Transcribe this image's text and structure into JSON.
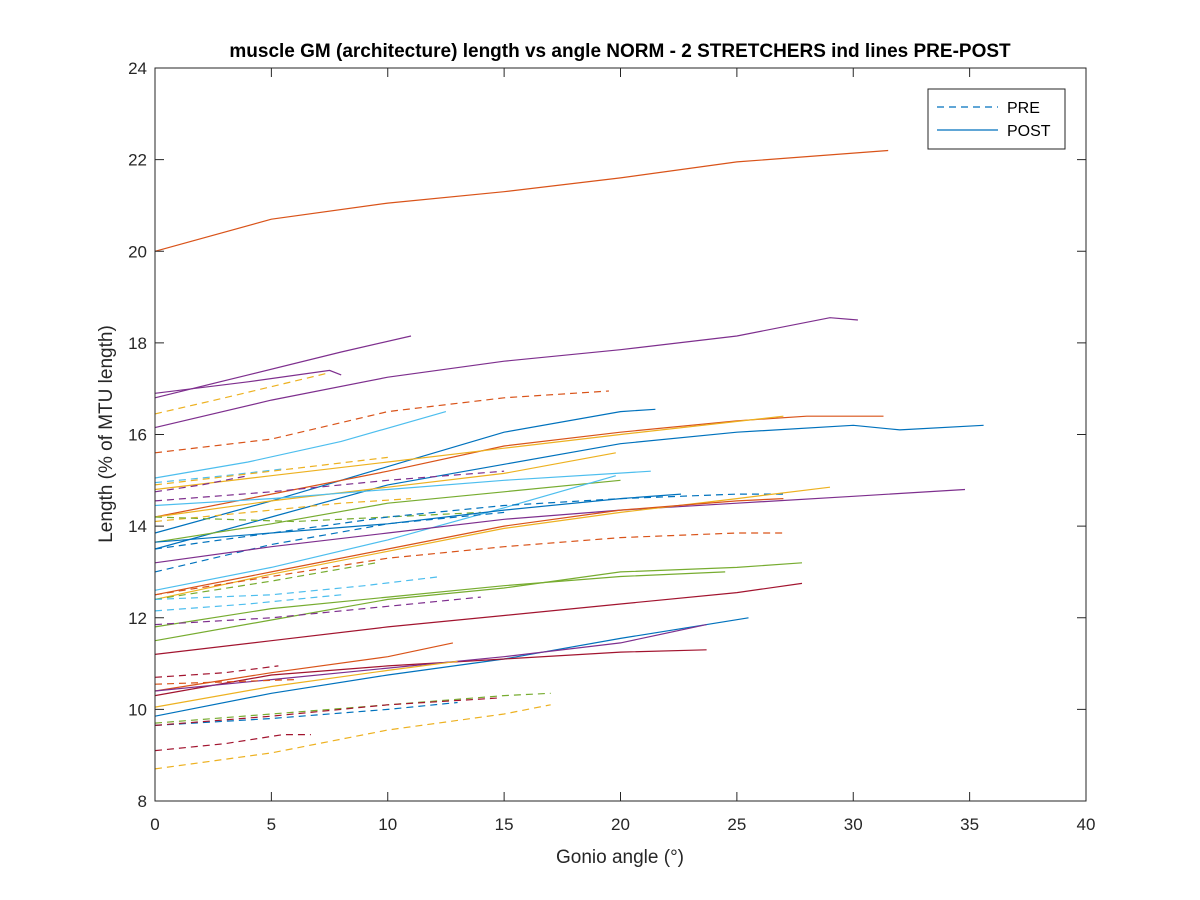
{
  "chart_data": {
    "type": "line",
    "title": "muscle GM (architecture) length vs angle NORM - 2 STRETCHERS ind lines PRE-POST",
    "xlabel": "Gonio angle (°)",
    "ylabel": "Length (% of MTU length)",
    "xlim": [
      0,
      40
    ],
    "ylim": [
      8,
      24
    ],
    "xticks": [
      "0",
      "5",
      "10",
      "15",
      "20",
      "25",
      "30",
      "35",
      "40"
    ],
    "yticks": [
      "8",
      "10",
      "12",
      "14",
      "16",
      "18",
      "20",
      "22",
      "24"
    ],
    "grid": false,
    "legend": {
      "placement": "top-right",
      "entries": [
        {
          "label": "PRE",
          "style": "dashed",
          "color": "#0072BD"
        },
        {
          "label": "POST",
          "style": "solid",
          "color": "#0072BD"
        }
      ]
    },
    "series": [
      {
        "style": "solid",
        "color": "#D95319",
        "points": [
          [
            0,
            20.0
          ],
          [
            5,
            20.7
          ],
          [
            10,
            21.05
          ],
          [
            15,
            21.3
          ],
          [
            20,
            21.6
          ],
          [
            25,
            21.95
          ],
          [
            31.5,
            22.2
          ]
        ]
      },
      {
        "style": "solid",
        "color": "#7E2F8E",
        "points": [
          [
            0,
            16.15
          ],
          [
            5,
            16.75
          ],
          [
            10,
            17.25
          ],
          [
            15,
            17.6
          ],
          [
            20,
            17.85
          ],
          [
            25,
            18.15
          ],
          [
            29,
            18.55
          ],
          [
            30.2,
            18.5
          ]
        ]
      },
      {
        "style": "solid",
        "color": "#7E2F8E",
        "points": [
          [
            0,
            16.8
          ],
          [
            4,
            17.3
          ],
          [
            8,
            17.8
          ],
          [
            11,
            18.15
          ]
        ]
      },
      {
        "style": "solid",
        "color": "#7E2F8E",
        "points": [
          [
            0,
            16.9
          ],
          [
            4,
            17.15
          ],
          [
            7.5,
            17.4
          ],
          [
            8,
            17.3
          ]
        ]
      },
      {
        "style": "dashed",
        "color": "#EDB120",
        "points": [
          [
            0,
            16.45
          ],
          [
            3,
            16.8
          ],
          [
            7.5,
            17.35
          ]
        ]
      },
      {
        "style": "dashed",
        "color": "#D95319",
        "points": [
          [
            0,
            15.6
          ],
          [
            5,
            15.9
          ],
          [
            10,
            16.5
          ],
          [
            15,
            16.8
          ],
          [
            19.5,
            16.95
          ]
        ]
      },
      {
        "style": "solid",
        "color": "#4DBEEE",
        "points": [
          [
            0,
            15.05
          ],
          [
            4,
            15.4
          ],
          [
            8,
            15.85
          ],
          [
            12.5,
            16.5
          ]
        ]
      },
      {
        "style": "solid",
        "color": "#0072BD",
        "points": [
          [
            0,
            13.85
          ],
          [
            5,
            14.55
          ],
          [
            10,
            15.3
          ],
          [
            15,
            16.05
          ],
          [
            20,
            16.5
          ],
          [
            21.5,
            16.55
          ]
        ]
      },
      {
        "style": "solid",
        "color": "#D95319",
        "points": [
          [
            0,
            14.2
          ],
          [
            5,
            14.7
          ],
          [
            10,
            15.2
          ],
          [
            15,
            15.75
          ],
          [
            20,
            16.05
          ],
          [
            25,
            16.3
          ],
          [
            28,
            16.4
          ],
          [
            31.3,
            16.4
          ]
        ]
      },
      {
        "style": "solid",
        "color": "#0072BD",
        "points": [
          [
            0,
            13.5
          ],
          [
            5,
            14.2
          ],
          [
            10,
            14.9
          ],
          [
            15,
            15.35
          ],
          [
            20,
            15.8
          ],
          [
            25,
            16.05
          ],
          [
            30,
            16.2
          ],
          [
            32,
            16.1
          ],
          [
            35.6,
            16.2
          ]
        ]
      },
      {
        "style": "solid",
        "color": "#EDB120",
        "points": [
          [
            0,
            14.8
          ],
          [
            5,
            15.1
          ],
          [
            10,
            15.4
          ],
          [
            15,
            15.7
          ],
          [
            20,
            16.0
          ],
          [
            27,
            16.4
          ]
        ]
      },
      {
        "style": "dashed",
        "color": "#4DBEEE",
        "points": [
          [
            0,
            14.95
          ],
          [
            3,
            15.1
          ],
          [
            5.5,
            15.25
          ]
        ]
      },
      {
        "style": "dashed",
        "color": "#7E2F8E",
        "points": [
          [
            0,
            14.75
          ],
          [
            2,
            14.9
          ],
          [
            4,
            15.1
          ]
        ]
      },
      {
        "style": "dashed",
        "color": "#EDB120",
        "points": [
          [
            0,
            14.9
          ],
          [
            5,
            15.2
          ],
          [
            10,
            15.5
          ]
        ]
      },
      {
        "style": "solid",
        "color": "#EDB120",
        "points": [
          [
            0,
            14.2
          ],
          [
            5,
            14.55
          ],
          [
            10,
            14.85
          ],
          [
            15,
            15.15
          ],
          [
            19.8,
            15.6
          ]
        ]
      },
      {
        "style": "solid",
        "color": "#4DBEEE",
        "points": [
          [
            0,
            14.45
          ],
          [
            5,
            14.6
          ],
          [
            10,
            14.8
          ],
          [
            15,
            15.0
          ],
          [
            21.3,
            15.2
          ]
        ]
      },
      {
        "style": "dashed",
        "color": "#7E2F8E",
        "points": [
          [
            0,
            14.55
          ],
          [
            5,
            14.75
          ],
          [
            10,
            15.0
          ],
          [
            15,
            15.2
          ]
        ]
      },
      {
        "style": "dashed",
        "color": "#EDB120",
        "points": [
          [
            0,
            14.1
          ],
          [
            4,
            14.3
          ],
          [
            8,
            14.5
          ],
          [
            11,
            14.6
          ]
        ]
      },
      {
        "style": "solid",
        "color": "#77AC30",
        "points": [
          [
            0,
            13.65
          ],
          [
            5,
            14.05
          ],
          [
            10,
            14.5
          ],
          [
            15,
            14.75
          ],
          [
            20,
            15.0
          ]
        ]
      },
      {
        "style": "dashed",
        "color": "#77AC30",
        "points": [
          [
            0,
            14.2
          ],
          [
            3,
            14.15
          ],
          [
            6,
            14.1
          ],
          [
            10,
            14.2
          ],
          [
            14,
            14.3
          ]
        ]
      },
      {
        "style": "solid",
        "color": "#4DBEEE",
        "points": [
          [
            0,
            12.6
          ],
          [
            5,
            13.1
          ],
          [
            10,
            13.7
          ],
          [
            15,
            14.4
          ],
          [
            19.8,
            15.1
          ]
        ]
      },
      {
        "style": "solid",
        "color": "#0072BD",
        "points": [
          [
            0,
            13.65
          ],
          [
            5,
            13.85
          ],
          [
            10,
            14.05
          ],
          [
            15,
            14.35
          ],
          [
            20,
            14.6
          ],
          [
            22.6,
            14.7
          ]
        ]
      },
      {
        "style": "dashed",
        "color": "#0072BD",
        "points": [
          [
            0,
            13.5
          ],
          [
            5,
            13.85
          ],
          [
            10,
            14.2
          ],
          [
            15,
            14.45
          ],
          [
            20,
            14.6
          ],
          [
            25,
            14.7
          ],
          [
            27,
            14.7
          ]
        ]
      },
      {
        "style": "dashed",
        "color": "#0072BD",
        "points": [
          [
            0,
            13.0
          ],
          [
            5,
            13.6
          ],
          [
            10,
            14.05
          ],
          [
            15,
            14.3
          ]
        ]
      },
      {
        "style": "solid",
        "color": "#7E2F8E",
        "points": [
          [
            0,
            13.2
          ],
          [
            5,
            13.55
          ],
          [
            10,
            13.85
          ],
          [
            15,
            14.15
          ],
          [
            20,
            14.35
          ],
          [
            25,
            14.5
          ],
          [
            30,
            14.65
          ],
          [
            34.8,
            14.8
          ]
        ]
      },
      {
        "style": "solid",
        "color": "#EDB120",
        "points": [
          [
            0,
            12.4
          ],
          [
            5,
            12.95
          ],
          [
            10,
            13.45
          ],
          [
            15,
            13.95
          ],
          [
            20,
            14.3
          ],
          [
            25,
            14.6
          ],
          [
            29,
            14.85
          ]
        ]
      },
      {
        "style": "solid",
        "color": "#D95319",
        "points": [
          [
            0,
            12.5
          ],
          [
            5,
            13.0
          ],
          [
            10,
            13.5
          ],
          [
            15,
            14.0
          ],
          [
            20,
            14.35
          ],
          [
            25,
            14.55
          ],
          [
            27,
            14.6
          ]
        ]
      },
      {
        "style": "dashed",
        "color": "#D95319",
        "points": [
          [
            0,
            12.5
          ],
          [
            5,
            12.9
          ],
          [
            10,
            13.3
          ],
          [
            15,
            13.55
          ],
          [
            20,
            13.75
          ],
          [
            25,
            13.85
          ],
          [
            27,
            13.85
          ]
        ]
      },
      {
        "style": "dashed",
        "color": "#77AC30",
        "points": [
          [
            0,
            12.4
          ],
          [
            5,
            12.8
          ],
          [
            9.5,
            13.2
          ]
        ]
      },
      {
        "style": "dashed",
        "color": "#4DBEEE",
        "points": [
          [
            0,
            12.4
          ],
          [
            5,
            12.5
          ],
          [
            9,
            12.7
          ],
          [
            12.3,
            12.9
          ]
        ]
      },
      {
        "style": "dashed",
        "color": "#4DBEEE",
        "points": [
          [
            0,
            12.15
          ],
          [
            4,
            12.3
          ],
          [
            8,
            12.5
          ]
        ]
      },
      {
        "style": "solid",
        "color": "#77AC30",
        "points": [
          [
            0,
            11.8
          ],
          [
            5,
            12.2
          ],
          [
            10,
            12.45
          ],
          [
            15,
            12.7
          ],
          [
            20,
            12.9
          ],
          [
            24.5,
            13.0
          ]
        ]
      },
      {
        "style": "solid",
        "color": "#77AC30",
        "points": [
          [
            0,
            11.5
          ],
          [
            5,
            11.95
          ],
          [
            10,
            12.4
          ],
          [
            15,
            12.65
          ],
          [
            20,
            13.0
          ],
          [
            25,
            13.1
          ],
          [
            27.8,
            13.2
          ]
        ]
      },
      {
        "style": "dashed",
        "color": "#7E2F8E",
        "points": [
          [
            0,
            11.85
          ],
          [
            5,
            12.0
          ],
          [
            10,
            12.25
          ],
          [
            14,
            12.45
          ]
        ]
      },
      {
        "style": "solid",
        "color": "#A2142F",
        "points": [
          [
            0,
            11.2
          ],
          [
            5,
            11.5
          ],
          [
            10,
            11.8
          ],
          [
            15,
            12.05
          ],
          [
            20,
            12.3
          ],
          [
            25,
            12.55
          ],
          [
            27.8,
            12.75
          ]
        ]
      },
      {
        "style": "solid",
        "color": "#D95319",
        "points": [
          [
            0,
            10.4
          ],
          [
            5,
            10.8
          ],
          [
            10,
            11.15
          ],
          [
            12.8,
            11.45
          ]
        ]
      },
      {
        "style": "solid",
        "color": "#0072BD",
        "points": [
          [
            0,
            9.85
          ],
          [
            5,
            10.35
          ],
          [
            10,
            10.75
          ],
          [
            15,
            11.1
          ],
          [
            20,
            11.55
          ],
          [
            25.5,
            12.0
          ]
        ]
      },
      {
        "style": "solid",
        "color": "#A2142F",
        "points": [
          [
            0,
            10.3
          ],
          [
            5,
            10.75
          ],
          [
            10,
            10.95
          ],
          [
            15,
            11.1
          ],
          [
            20,
            11.25
          ],
          [
            23.7,
            11.3
          ]
        ]
      },
      {
        "style": "solid",
        "color": "#7E2F8E",
        "points": [
          [
            0,
            10.4
          ],
          [
            5,
            10.65
          ],
          [
            10,
            10.9
          ],
          [
            15,
            11.15
          ],
          [
            20,
            11.45
          ],
          [
            23.7,
            11.85
          ]
        ]
      },
      {
        "style": "solid",
        "color": "#EDB120",
        "points": [
          [
            0,
            10.05
          ],
          [
            5,
            10.5
          ],
          [
            10,
            10.85
          ],
          [
            13,
            11.05
          ]
        ]
      },
      {
        "style": "dashed",
        "color": "#A2142F",
        "points": [
          [
            0,
            10.7
          ],
          [
            3,
            10.8
          ],
          [
            5.3,
            10.95
          ]
        ]
      },
      {
        "style": "dashed",
        "color": "#D95319",
        "points": [
          [
            0,
            10.55
          ],
          [
            3,
            10.6
          ],
          [
            6,
            10.65
          ]
        ]
      },
      {
        "style": "dashed",
        "color": "#77AC30",
        "points": [
          [
            0,
            9.7
          ],
          [
            5,
            9.9
          ],
          [
            10,
            10.1
          ],
          [
            15,
            10.3
          ],
          [
            17,
            10.35
          ]
        ]
      },
      {
        "style": "dashed",
        "color": "#0072BD",
        "points": [
          [
            0,
            9.65
          ],
          [
            5,
            9.8
          ],
          [
            10,
            10.0
          ],
          [
            13,
            10.15
          ]
        ]
      },
      {
        "style": "dashed",
        "color": "#A2142F",
        "points": [
          [
            0,
            9.65
          ],
          [
            5,
            9.85
          ],
          [
            10,
            10.1
          ],
          [
            14.8,
            10.25
          ]
        ]
      },
      {
        "style": "dashed",
        "color": "#A2142F",
        "points": [
          [
            0,
            9.1
          ],
          [
            3,
            9.25
          ],
          [
            5.5,
            9.45
          ],
          [
            6.7,
            9.45
          ]
        ]
      },
      {
        "style": "dashed",
        "color": "#EDB120",
        "points": [
          [
            0,
            8.7
          ],
          [
            5,
            9.05
          ],
          [
            10,
            9.55
          ],
          [
            15,
            9.9
          ],
          [
            17,
            10.1
          ]
        ]
      }
    ]
  }
}
